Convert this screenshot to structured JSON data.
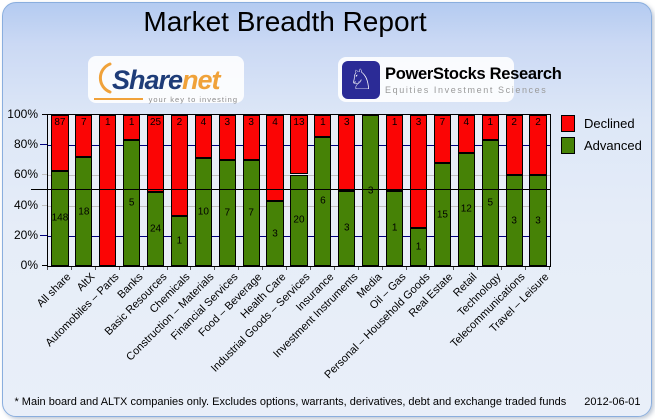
{
  "title": "Market Breadth Report",
  "logos": {
    "sharenet": {
      "word_part1": "Share",
      "word_part2": "net",
      "tagline": "your key to investing"
    },
    "powerstocks": {
      "name": "PowerStocks  Research",
      "tagline": "Equities Investment Sciences",
      "knight_icon": "♘"
    }
  },
  "chart_data": {
    "type": "bar",
    "stacked": true,
    "orientation": "vertical",
    "unit": "percent of companies",
    "ylim": [
      0,
      100
    ],
    "ytick_labels": [
      "100%",
      "80%",
      "60%",
      "40%",
      "20%",
      "0%"
    ],
    "grid_on": true,
    "reference_line_pct": 50,
    "legend_position": "top-right",
    "categories": [
      "All share",
      "AltX",
      "Automobiles – Parts",
      "Banks",
      "Basic Resources",
      "Chemicals",
      "Construction – Materials",
      "Financial Services",
      "Food – Beverage",
      "Health Care",
      "Industrial Goods – Services",
      "Insurance",
      "Investment Instruments",
      "Media",
      "Oil – Gas",
      "Personal – Household Goods",
      "Real Estate",
      "Retail",
      "Technology",
      "Telecommunications",
      "Travel – Leisure"
    ],
    "series": [
      {
        "name": "Declined",
        "color": "#fb0505",
        "values": [
          87,
          7,
          1,
          1,
          25,
          2,
          4,
          3,
          3,
          4,
          13,
          1,
          3,
          0,
          1,
          3,
          7,
          4,
          1,
          2,
          2
        ]
      },
      {
        "name": "Advanced",
        "color": "#468206",
        "values": [
          148,
          18,
          0,
          5,
          24,
          1,
          10,
          7,
          7,
          3,
          20,
          6,
          3,
          3,
          1,
          1,
          15,
          12,
          5,
          3,
          3
        ]
      }
    ],
    "gridlines": [
      {
        "pct": 80,
        "color": "#00007f"
      },
      {
        "pct": 60,
        "color": "#c0c0c0"
      },
      {
        "pct": 40,
        "color": "#c0c0c0"
      },
      {
        "pct": 20,
        "color": "#00007f"
      }
    ]
  },
  "footer": {
    "note": "* Main board and ALTX companies only. Excludes options, warrants, derivatives, debt and exchange traded funds",
    "date": "2012-06-01"
  }
}
